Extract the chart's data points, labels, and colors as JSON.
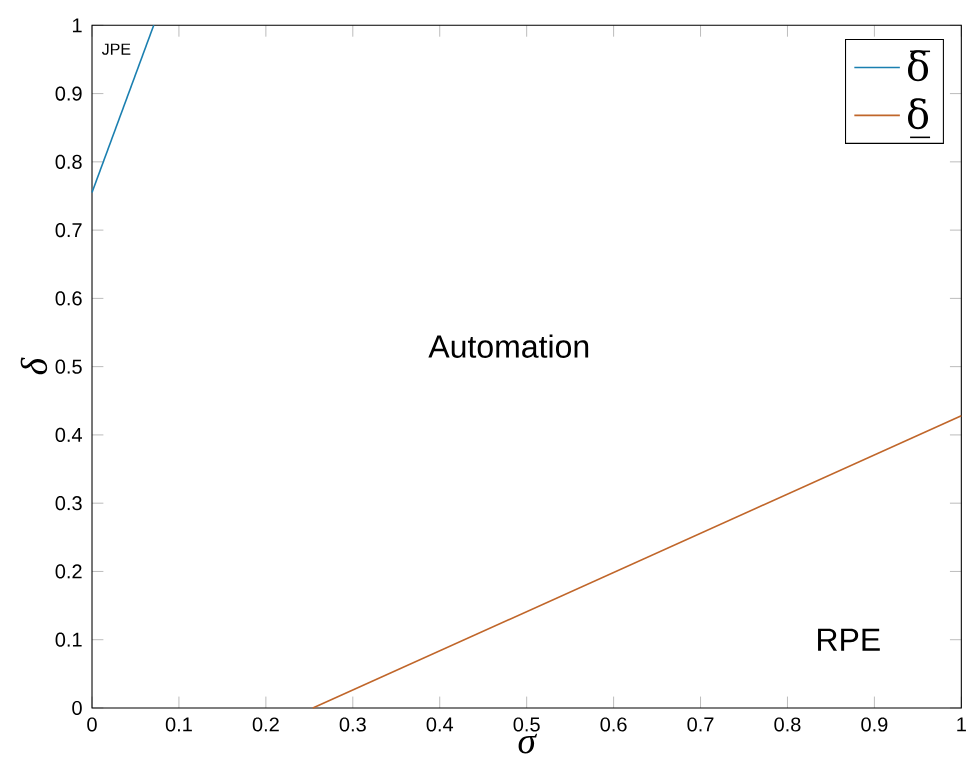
{
  "chart_data": {
    "type": "line",
    "xlabel": "σ",
    "ylabel": "δ",
    "series": [
      {
        "name": "δ̅",
        "color": "#1a7fb0",
        "x": [
          0,
          0.071
        ],
        "values": [
          0.755,
          1
        ]
      },
      {
        "name": "δ̲",
        "color": "#c0662a",
        "x": [
          0.254,
          1
        ],
        "values": [
          0,
          0.428
        ]
      }
    ],
    "annotations": [
      "JPE",
      "Automation",
      "RPE"
    ],
    "xlim": [
      0,
      1
    ],
    "ylim": [
      0,
      1
    ],
    "xticks": [
      0,
      0.1,
      0.2,
      0.3,
      0.4,
      0.5,
      0.6,
      0.7,
      0.8,
      0.9,
      1
    ],
    "yticks": [
      0,
      0.1,
      0.2,
      0.3,
      0.4,
      0.5,
      0.6,
      0.7,
      0.8,
      0.9,
      1
    ],
    "grid": false,
    "legend": "top right",
    "marker": "none",
    "line_style": "solid"
  }
}
